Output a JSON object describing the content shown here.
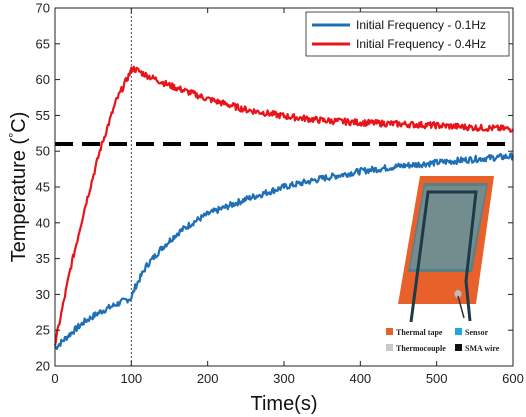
{
  "chart_data": {
    "type": "line",
    "xlabel": "Time(s)",
    "ylabel_prefix": "Temperature (",
    "ylabel_degree": "°",
    "ylabel_suffix": "C)",
    "xlim": [
      0,
      600
    ],
    "ylim": [
      20,
      70
    ],
    "xticks": [
      "0",
      "100",
      "200",
      "300",
      "400",
      "500",
      "600"
    ],
    "yticks": [
      "20",
      "25",
      "30",
      "35",
      "40",
      "45",
      "50",
      "55",
      "60",
      "65",
      "70"
    ],
    "grid": false,
    "legend_position": "top-right",
    "series": [
      {
        "name": "Initial Frequency - 0.1Hz",
        "color": "#1f6fb5",
        "x": [
          0,
          20,
          40,
          60,
          80,
          95,
          100,
          105,
          120,
          140,
          160,
          180,
          200,
          250,
          300,
          350,
          400,
          450,
          500,
          550,
          600
        ],
        "y": [
          22.5,
          24.5,
          26.3,
          27.6,
          28.6,
          29.3,
          29.5,
          31.0,
          34.0,
          36.5,
          38.5,
          40.0,
          41.2,
          43.3,
          45.0,
          46.2,
          47.2,
          47.9,
          48.4,
          48.9,
          49.3
        ]
      },
      {
        "name": "Initial Frequency - 0.4Hz",
        "color": "#e8141a",
        "x": [
          0,
          20,
          40,
          60,
          80,
          100,
          102,
          120,
          150,
          200,
          250,
          300,
          350,
          400,
          450,
          500,
          550,
          600
        ],
        "y": [
          23.0,
          33.5,
          42.5,
          50.5,
          57.0,
          61.3,
          61.6,
          60.6,
          59.2,
          57.3,
          55.8,
          54.9,
          54.3,
          54.0,
          53.8,
          53.6,
          53.3,
          53.1
        ]
      }
    ],
    "reference_lines": [
      {
        "orientation": "horizontal",
        "value": 51,
        "style": "dashed",
        "color": "#000000"
      },
      {
        "orientation": "vertical",
        "value": 100,
        "style": "dotted",
        "color": "#444444"
      }
    ],
    "inset": {
      "legend": [
        {
          "label": "Thermal tape",
          "color": "#e8602a"
        },
        {
          "label": "Sensor",
          "color": "#1ea6e0"
        },
        {
          "label": "Thermocouple",
          "color": "#c8c8c8"
        },
        {
          "label": "SMA wire",
          "color": "#111111"
        }
      ]
    }
  }
}
